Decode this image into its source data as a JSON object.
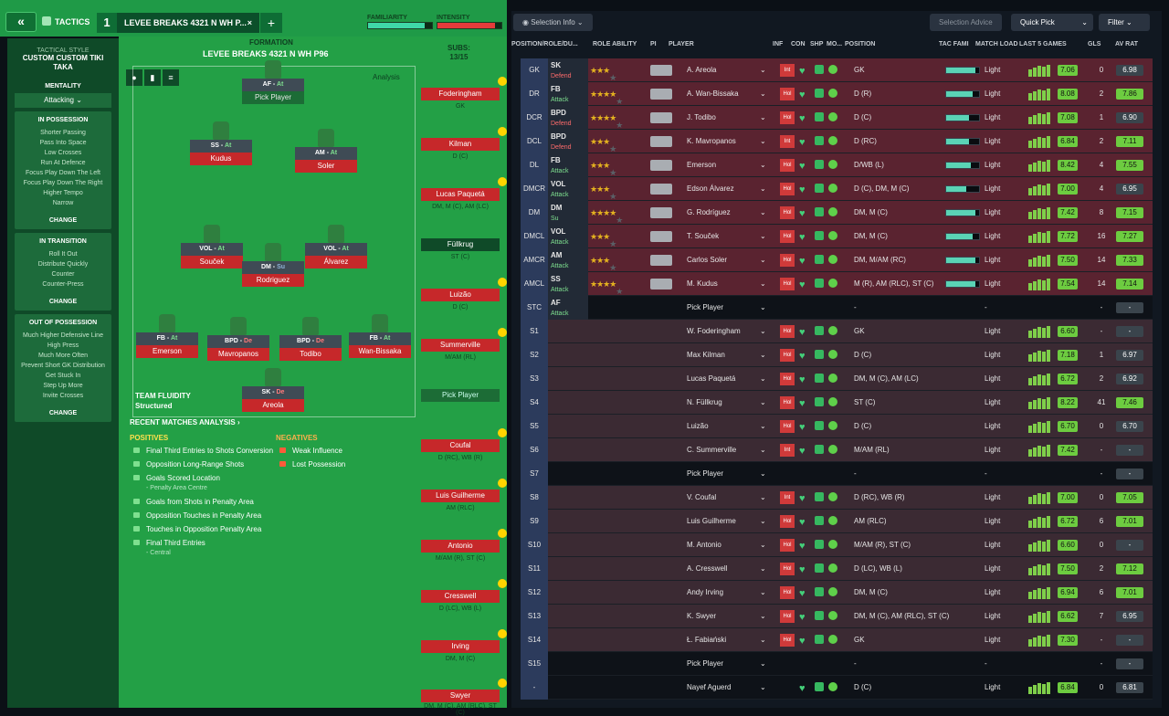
{
  "topbar": {
    "back": "«",
    "tactics": "TACTICS",
    "tab_num": "1",
    "tab_name": "LEVEE BREAKS 4321 N WH P...",
    "tab_close": "×",
    "tab_add": "+",
    "familiarity": "FAMILIARITY",
    "intensity": "INTENSITY",
    "familiarity_fill": 0.88,
    "intensity_fill": 0.9
  },
  "left": {
    "style_label": "TACTICAL STYLE",
    "style_name": "CUSTOM CUSTOM TIKI TAKA",
    "mentality_label": "MENTALITY",
    "mentality": "Attacking",
    "in_possession": {
      "title": "IN POSSESSION",
      "items": [
        "Shorter Passing",
        "Pass Into Space",
        "Low Crosses",
        "Run At Defence",
        "Focus Play Down The Left",
        "Focus Play Down The Right",
        "Higher Tempo",
        "Narrow"
      ],
      "change": "CHANGE"
    },
    "in_transition": {
      "title": "IN TRANSITION",
      "items": [
        "Roll It Out",
        "Distribute Quickly",
        "Counter",
        "Counter-Press"
      ],
      "change": "CHANGE"
    },
    "out_possession": {
      "title": "OUT OF POSSESSION",
      "items": [
        "Much Higher Defensive Line",
        "High Press",
        "Much More Often",
        "Prevent Short GK Distribution",
        "Get Stuck In",
        "Step Up More",
        "Invite Crosses"
      ],
      "change": "CHANGE"
    }
  },
  "pitch": {
    "formation_label": "FORMATION",
    "formation_name": "LEVEE BREAKS 4321 N WH P96",
    "subs_label": "SUBS:",
    "subs_count": "13/15",
    "analysis": "Analysis",
    "fluidity_label": "TEAM FLUIDITY",
    "fluidity": "Structured",
    "slots": [
      {
        "role": "AF",
        "duty": "At",
        "player": "Pick Player"
      },
      {
        "role": "SS",
        "duty": "At",
        "player": "Kudus"
      },
      {
        "role": "AM",
        "duty": "At",
        "player": "Soler"
      },
      {
        "role": "VOL",
        "duty": "At",
        "player": "Souček"
      },
      {
        "role": "DM",
        "duty": "Su",
        "player": "Rodriguez"
      },
      {
        "role": "VOL",
        "duty": "At",
        "player": "Álvarez"
      },
      {
        "role": "FB",
        "duty": "At",
        "player": "Emerson"
      },
      {
        "role": "BPD",
        "duty": "De",
        "player": "Mavropanos"
      },
      {
        "role": "BPD",
        "duty": "De",
        "player": "Todibo"
      },
      {
        "role": "FB",
        "duty": "At",
        "player": "Wan-Bissaka"
      },
      {
        "role": "SK",
        "duty": "De",
        "player": "Areola"
      }
    ]
  },
  "subs": [
    {
      "name": "Foderingham",
      "pos": "GK"
    },
    {
      "name": "Kilman",
      "pos": "D (C)"
    },
    {
      "name": "Lucas Paquetá",
      "pos": "DM, M (C), AM (LC)"
    },
    {
      "name": "Füllkrug",
      "pos": "ST (C)"
    },
    {
      "name": "Luizão",
      "pos": "D (C)"
    },
    {
      "name": "Summerville",
      "pos": "M/AM (RL)"
    },
    {
      "name": "Pick Player",
      "pos": ""
    },
    {
      "name": "Coufal",
      "pos": "D (RC), WB (R)"
    },
    {
      "name": "Luis Guilherme",
      "pos": "AM (RLC)"
    },
    {
      "name": "Antonio",
      "pos": "M/AM (R), ST (C)"
    },
    {
      "name": "Cresswell",
      "pos": "D (LC), WB (L)"
    },
    {
      "name": "Irving",
      "pos": "DM, M (C)"
    },
    {
      "name": "Swyer",
      "pos": "DM, M (C), AM (RLC), ST (C)"
    }
  ],
  "analysis": {
    "title": "RECENT MATCHES ANALYSIS ›",
    "positives_label": "POSITIVES",
    "negatives_label": "NEGATIVES",
    "positives": [
      {
        "text": "Final Third Entries to Shots Conversion",
        "sub": ""
      },
      {
        "text": "Opposition Long-Range Shots",
        "sub": ""
      },
      {
        "text": "Goals Scored Location",
        "sub": "- Penalty Area Centre"
      },
      {
        "text": "Goals from Shots in Penalty Area",
        "sub": ""
      },
      {
        "text": "Opposition Touches in Penalty Area",
        "sub": ""
      },
      {
        "text": "Touches in Opposition Penalty Area",
        "sub": ""
      },
      {
        "text": "Final Third Entries",
        "sub": "- Central"
      }
    ],
    "negatives": [
      "Weak Influence",
      "Lost Possession"
    ]
  },
  "rightbar": {
    "selection_info": "Selection Info",
    "selection_advice": "Selection Advice",
    "quick_pick": "Quick Pick",
    "filter": "Filter"
  },
  "headers": [
    "POSITION/ROLE/DU...",
    "ROLE ABILITY",
    "PI",
    "PLAYER",
    "INF",
    "CON",
    "SHP",
    "MO...",
    "POSITION",
    "TAC FAMI",
    "MATCH LOAD",
    "LAST 5 GAMES",
    "GLS",
    "AV RAT"
  ],
  "rows": [
    {
      "pos": "GK",
      "role": "SK",
      "duty": "Defend",
      "stars": 3,
      "player": "A. Areola",
      "inf": "Int",
      "position": "GK",
      "fam": 0.9,
      "load": "Light",
      "last": "7.06",
      "gls": "0",
      "avr": "6.98",
      "cls": "red"
    },
    {
      "pos": "DR",
      "role": "FB",
      "duty": "Attack",
      "stars": 3.5,
      "player": "A. Wan-Bissaka",
      "inf": "Hol",
      "position": "D (R)",
      "fam": 0.8,
      "load": "Light",
      "last": "8.08",
      "gls": "2",
      "avr": "7.86",
      "cls": "red"
    },
    {
      "pos": "DCR",
      "role": "BPD",
      "duty": "Defend",
      "stars": 3.5,
      "player": "J. Todibo",
      "inf": "Hol",
      "position": "D (C)",
      "fam": 0.7,
      "load": "Light",
      "last": "7.08",
      "gls": "1",
      "avr": "6.90",
      "cls": "red"
    },
    {
      "pos": "DCL",
      "role": "BPD",
      "duty": "Defend",
      "stars": 3,
      "player": "K. Mavropanos",
      "inf": "Int",
      "position": "D (RC)",
      "fam": 0.7,
      "load": "Light",
      "last": "6.84",
      "gls": "2",
      "avr": "7.11",
      "cls": "red"
    },
    {
      "pos": "DL",
      "role": "FB",
      "duty": "Attack",
      "stars": 3,
      "player": "Emerson",
      "inf": "Hol",
      "position": "D/WB (L)",
      "fam": 0.75,
      "load": "Light",
      "last": "8.42",
      "gls": "4",
      "avr": "7.55",
      "cls": "red"
    },
    {
      "pos": "DMCR",
      "role": "VOL",
      "duty": "Attack",
      "stars": 2.5,
      "player": "Edson Álvarez",
      "inf": "Hol",
      "position": "D (C), DM, M (C)",
      "fam": 0.6,
      "load": "Light",
      "last": "7.00",
      "gls": "4",
      "avr": "6.95",
      "cls": "red"
    },
    {
      "pos": "DM",
      "role": "DM",
      "duty": "Su",
      "stars": 4,
      "player": "G. Rodríguez",
      "inf": "Hol",
      "position": "DM, M (C)",
      "fam": 0.9,
      "load": "Light",
      "last": "7.42",
      "gls": "8",
      "avr": "7.15",
      "cls": "red"
    },
    {
      "pos": "DMCL",
      "role": "VOL",
      "duty": "Attack",
      "stars": 2.5,
      "player": "T. Souček",
      "inf": "Hol",
      "position": "DM, M (C)",
      "fam": 0.8,
      "load": "Light",
      "last": "7.72",
      "gls": "16",
      "avr": "7.27",
      "cls": "red"
    },
    {
      "pos": "AMCR",
      "role": "AM",
      "duty": "Attack",
      "stars": 3,
      "player": "Carlos Soler",
      "inf": "Hol",
      "position": "DM, M/AM (RC)",
      "fam": 0.9,
      "load": "Light",
      "last": "7.50",
      "gls": "14",
      "avr": "7.33",
      "cls": "red"
    },
    {
      "pos": "AMCL",
      "role": "SS",
      "duty": "Attack",
      "stars": 3.5,
      "player": "M. Kudus",
      "inf": "Hol",
      "position": "M (R), AM (RLC), ST (C)",
      "fam": 0.9,
      "load": "Light",
      "last": "7.54",
      "gls": "14",
      "avr": "7.14",
      "cls": "red"
    },
    {
      "pos": "STC",
      "role": "AF",
      "duty": "Attack",
      "stars": 0,
      "player": "Pick Player",
      "inf": "",
      "position": "-",
      "fam": 0,
      "load": "-",
      "last": "",
      "gls": "-",
      "avr": "-",
      "cls": "dk"
    },
    {
      "pos": "S1",
      "role": "",
      "duty": "",
      "stars": 0,
      "player": "W. Foderingham",
      "inf": "Hol",
      "position": "GK",
      "fam": 0,
      "load": "Light",
      "last": "6.60",
      "gls": "-",
      "avr": "-",
      "cls": "dkr"
    },
    {
      "pos": "S2",
      "role": "",
      "duty": "",
      "stars": 0,
      "player": "Max Kilman",
      "inf": "Hol",
      "position": "D (C)",
      "fam": 0,
      "load": "Light",
      "last": "7.18",
      "gls": "1",
      "avr": "6.97",
      "cls": "dkr"
    },
    {
      "pos": "S3",
      "role": "",
      "duty": "",
      "stars": 0,
      "player": "Lucas Paquetá",
      "inf": "Hol",
      "position": "DM, M (C), AM (LC)",
      "fam": 0,
      "load": "Light",
      "last": "6.72",
      "gls": "2",
      "avr": "6.92",
      "cls": "dkr"
    },
    {
      "pos": "S4",
      "role": "",
      "duty": "",
      "stars": 0,
      "player": "N. Füllkrug",
      "inf": "Hol",
      "position": "ST (C)",
      "fam": 0,
      "load": "Light",
      "last": "8.22",
      "gls": "41",
      "avr": "7.46",
      "cls": "dkr"
    },
    {
      "pos": "S5",
      "role": "",
      "duty": "",
      "stars": 0,
      "player": "Luizão",
      "inf": "Hol",
      "position": "D (C)",
      "fam": 0,
      "load": "Light",
      "last": "6.70",
      "gls": "0",
      "avr": "6.70",
      "cls": "dkr"
    },
    {
      "pos": "S6",
      "role": "",
      "duty": "",
      "stars": 0,
      "player": "C. Summerville",
      "inf": "Int",
      "position": "M/AM (RL)",
      "fam": 0,
      "load": "Light",
      "last": "7.42",
      "gls": "-",
      "avr": "-",
      "cls": "dkr"
    },
    {
      "pos": "S7",
      "role": "",
      "duty": "",
      "stars": 0,
      "player": "Pick Player",
      "inf": "",
      "position": "-",
      "fam": 0,
      "load": "-",
      "last": "",
      "gls": "-",
      "avr": "-",
      "cls": "dk"
    },
    {
      "pos": "S8",
      "role": "",
      "duty": "",
      "stars": 0,
      "player": "V. Coufal",
      "inf": "Int",
      "position": "D (RC), WB (R)",
      "fam": 0,
      "load": "Light",
      "last": "7.00",
      "gls": "0",
      "avr": "7.05",
      "cls": "dkr"
    },
    {
      "pos": "S9",
      "role": "",
      "duty": "",
      "stars": 0,
      "player": "Luis Guilherme",
      "inf": "Hol",
      "position": "AM (RLC)",
      "fam": 0,
      "load": "Light",
      "last": "6.72",
      "gls": "6",
      "avr": "7.01",
      "cls": "dkr"
    },
    {
      "pos": "S10",
      "role": "",
      "duty": "",
      "stars": 0,
      "player": "M. Antonio",
      "inf": "Hol",
      "position": "M/AM (R), ST (C)",
      "fam": 0,
      "load": "Light",
      "last": "6.60",
      "gls": "0",
      "avr": "-",
      "cls": "dkr"
    },
    {
      "pos": "S11",
      "role": "",
      "duty": "",
      "stars": 0,
      "player": "A. Cresswell",
      "inf": "Hol",
      "position": "D (LC), WB (L)",
      "fam": 0,
      "load": "Light",
      "last": "7.50",
      "gls": "2",
      "avr": "7.12",
      "cls": "dkr"
    },
    {
      "pos": "S12",
      "role": "",
      "duty": "",
      "stars": 0,
      "player": "Andy Irving",
      "inf": "Hol",
      "position": "DM, M (C)",
      "fam": 0,
      "load": "Light",
      "last": "6.94",
      "gls": "6",
      "avr": "7.01",
      "cls": "dkr"
    },
    {
      "pos": "S13",
      "role": "",
      "duty": "",
      "stars": 0,
      "player": "K. Swyer",
      "inf": "Hol",
      "position": "DM, M (C), AM (RLC), ST (C)",
      "fam": 0,
      "load": "Light",
      "last": "6.62",
      "gls": "7",
      "avr": "6.95",
      "cls": "dkr"
    },
    {
      "pos": "S14",
      "role": "",
      "duty": "",
      "stars": 0,
      "player": "Ł. Fabiański",
      "inf": "Hol",
      "position": "GK",
      "fam": 0,
      "load": "Light",
      "last": "7.30",
      "gls": "-",
      "avr": "-",
      "cls": "dkr"
    },
    {
      "pos": "S15",
      "role": "",
      "duty": "",
      "stars": 0,
      "player": "Pick Player",
      "inf": "",
      "position": "-",
      "fam": 0,
      "load": "-",
      "last": "",
      "gls": "-",
      "avr": "-",
      "cls": "dk"
    },
    {
      "pos": "-",
      "role": "",
      "duty": "",
      "stars": 0,
      "player": "Nayef Aguerd",
      "inf": "",
      "position": "D (C)",
      "fam": 0,
      "load": "Light",
      "last": "6.84",
      "gls": "0",
      "avr": "6.81",
      "cls": "dk"
    }
  ]
}
